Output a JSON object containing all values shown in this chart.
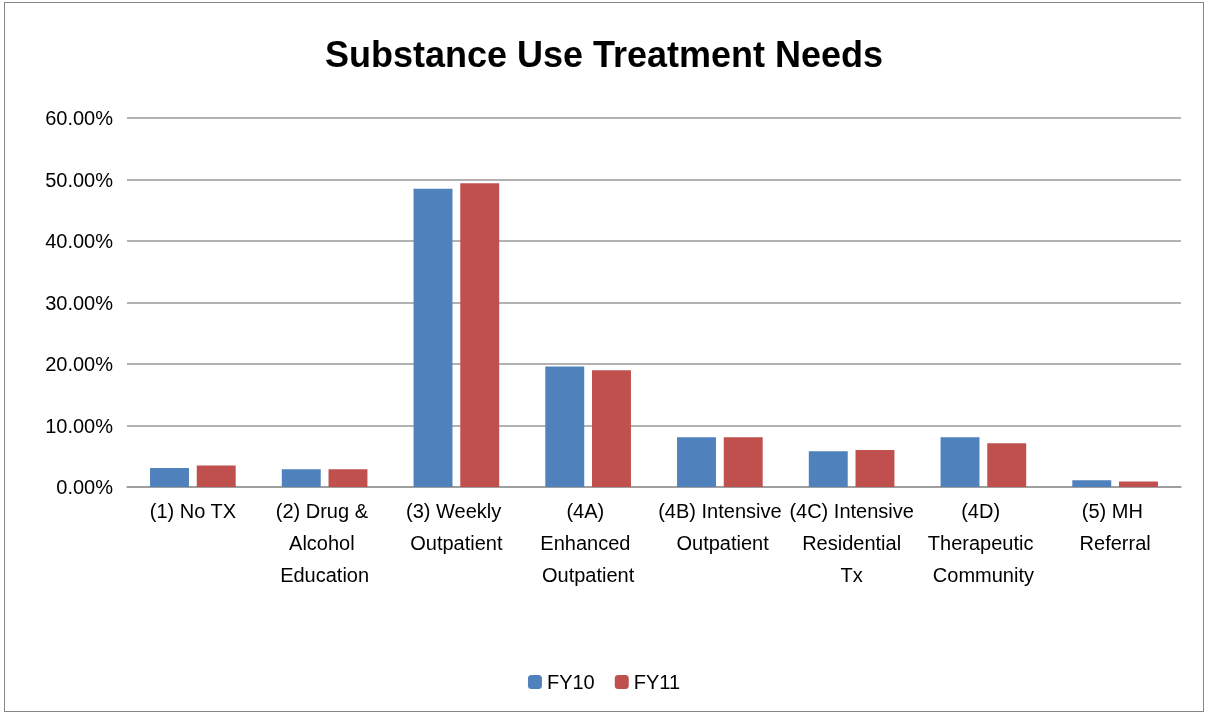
{
  "chart_data": {
    "type": "bar",
    "title": "Substance Use Treatment Needs",
    "categories": [
      "(1) No TX",
      "(2) Drug & Alcohol Education",
      "(3) Weekly Outpatient",
      "(4A) Enhanced Outpatient",
      "(4B) Intensive Outpatient",
      "(4C) Intensive Residential Tx",
      "(4D) Therapeutic Community",
      "(5) MH Referral"
    ],
    "series": [
      {
        "name": "FY10",
        "color": "#4f81bd",
        "values": [
          3.1,
          2.9,
          48.5,
          19.6,
          8.1,
          5.8,
          8.1,
          1.1
        ]
      },
      {
        "name": "FY11",
        "color": "#c0504d",
        "values": [
          3.5,
          2.9,
          49.4,
          19.0,
          8.1,
          6.0,
          7.1,
          0.9
        ]
      }
    ],
    "ylim": [
      0,
      60
    ],
    "yticks": [
      {
        "value": 0,
        "label": "0.00%"
      },
      {
        "value": 10,
        "label": "10.00%"
      },
      {
        "value": 20,
        "label": "20.00%"
      },
      {
        "value": 30,
        "label": "30.00%"
      },
      {
        "value": 40,
        "label": "40.00%"
      },
      {
        "value": 50,
        "label": "50.00%"
      },
      {
        "value": 60,
        "label": "60.00%"
      }
    ],
    "grid": "y",
    "legend": "bottom"
  }
}
